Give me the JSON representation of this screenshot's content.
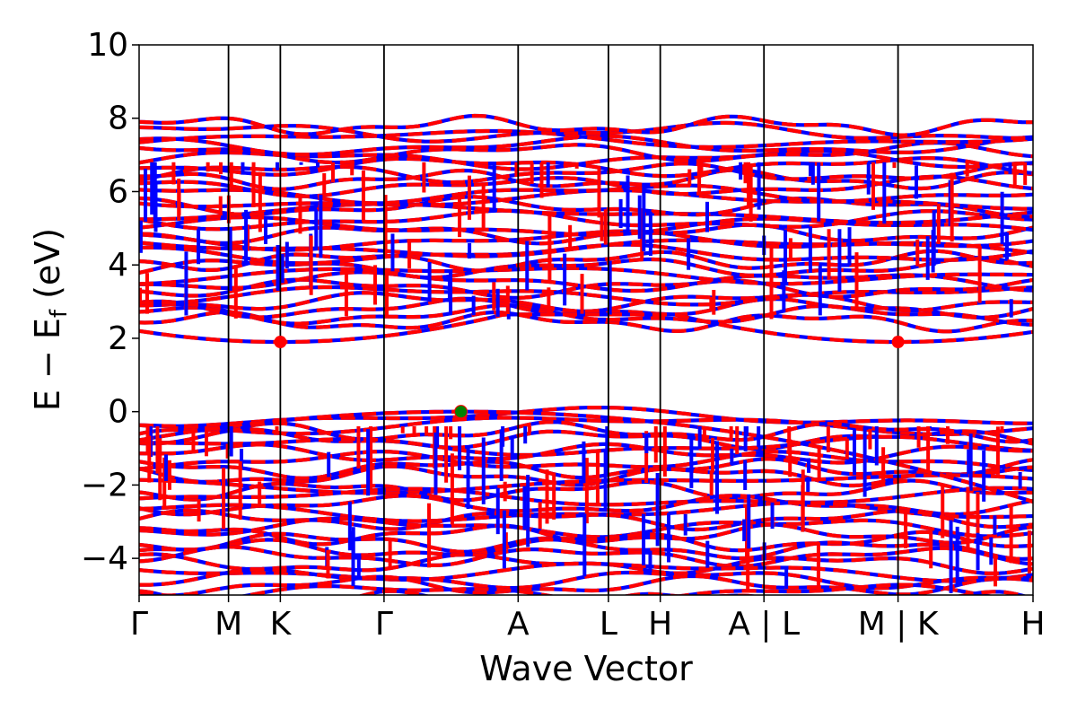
{
  "chart_data": {
    "type": "line",
    "xlabel": "Wave Vector",
    "ylabel": "E − E",
    "ylabel_subscript": "f",
    "ylabel_unit": " (eV)",
    "ylim": [
      -5,
      10
    ],
    "y_ticks": [
      10,
      8,
      6,
      4,
      2,
      0,
      -2,
      -4
    ],
    "y_tick_labels": [
      "10",
      "8",
      "6",
      "4",
      "2",
      "0",
      "−2",
      "−4"
    ],
    "k_points": [
      {
        "label": "Γ",
        "x": 0.0
      },
      {
        "label": "M",
        "x": 0.1
      },
      {
        "label": "K",
        "x": 0.158
      },
      {
        "label": "Γ",
        "x": 0.274
      },
      {
        "label": "A",
        "x": 0.424
      },
      {
        "label": "L",
        "x": 0.525
      },
      {
        "label": "H",
        "x": 0.583
      },
      {
        "label": "A | L",
        "x": 0.699
      },
      {
        "label": "M | K",
        "x": 0.849
      },
      {
        "label": "H",
        "x": 1.0
      }
    ],
    "band_colors": {
      "spin_up": "#0000ff",
      "spin_down": "#ff0000"
    },
    "band_gap_markers": [
      {
        "name": "CBM",
        "x": 0.158,
        "y": 1.9,
        "color": "#ff0000"
      },
      {
        "name": "CBM",
        "x": 0.849,
        "y": 1.9,
        "color": "#ff0000"
      },
      {
        "name": "VBM",
        "x": 0.36,
        "y": 0.0,
        "color": "#008000"
      }
    ],
    "conduction_band_range": [
      1.9,
      7.8
    ],
    "valence_band_range": [
      -5.0,
      0.0
    ],
    "grid": false,
    "legend": "none"
  }
}
